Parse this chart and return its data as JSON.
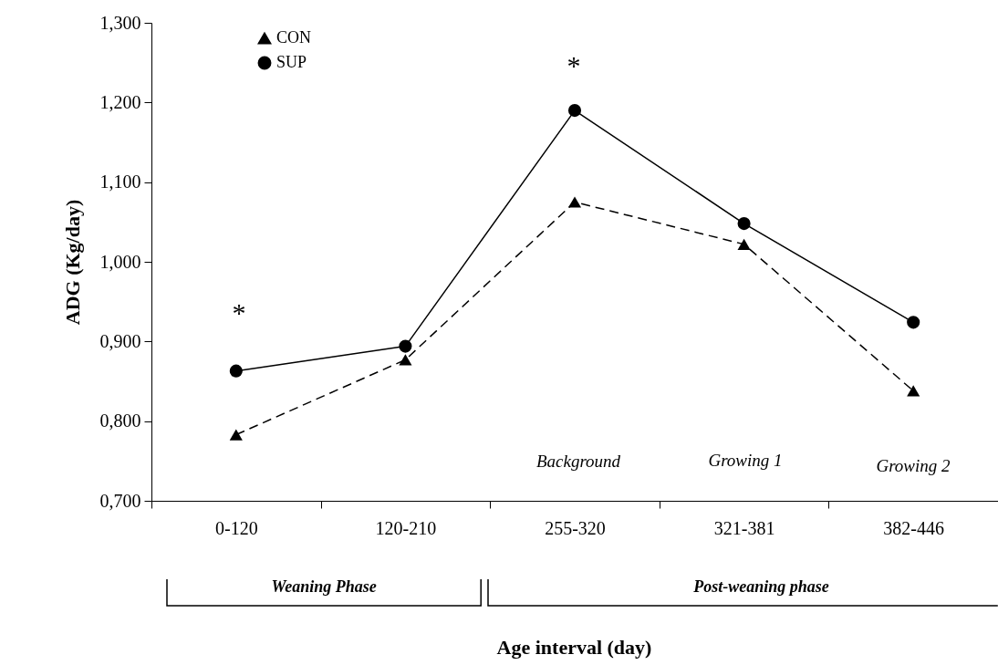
{
  "chart_data": {
    "type": "line",
    "xlabel": "Age interval (day)",
    "ylabel": "ADG (Kg/day)",
    "categories": [
      "0-120",
      "120-210",
      "255-320",
      "321-381",
      "382-446"
    ],
    "series": [
      {
        "name": "CON",
        "color": "#000000",
        "marker": "triangle",
        "line_style": "dashed",
        "values": [
          0.783,
          0.877,
          1.075,
          1.022,
          0.838
        ]
      },
      {
        "name": "SUP",
        "color": "#000000",
        "marker": "circle",
        "line_style": "solid",
        "values": [
          0.863,
          0.894,
          1.19,
          1.048,
          0.924
        ]
      }
    ],
    "ylim": [
      0.7,
      1.3
    ],
    "yticks": [
      {
        "value": 0.7,
        "label": "0,700"
      },
      {
        "value": 0.8,
        "label": "0,800"
      },
      {
        "value": 0.9,
        "label": "0,900"
      },
      {
        "value": 1.0,
        "label": "1,000"
      },
      {
        "value": 1.1,
        "label": "1,100"
      },
      {
        "value": 1.2,
        "label": "1,200"
      },
      {
        "value": 1.3,
        "label": "1,300"
      }
    ],
    "grid": false,
    "legend": "top left",
    "annotations": [
      "*",
      "*",
      "Background",
      "Growing 1",
      "Growing 2",
      "Weaning Phase",
      "Post-weaning phase"
    ]
  }
}
